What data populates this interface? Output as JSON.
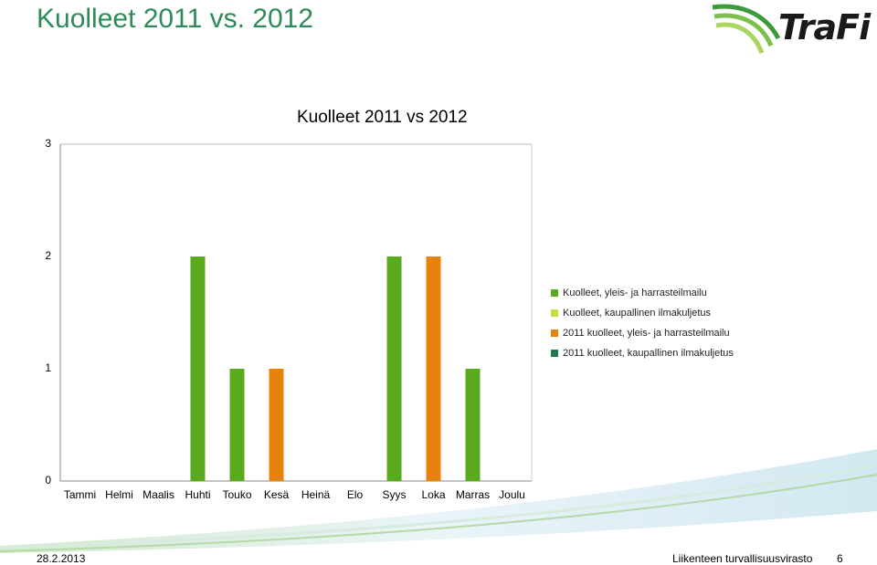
{
  "slide": {
    "title": "Kuolleet 2011 vs. 2012",
    "footer_date": "28.2.2013",
    "footer_org": "Liikenteen turvallisuusvirasto",
    "page_number": "6"
  },
  "logo": {
    "text": "TraFi"
  },
  "colors": {
    "title": "#2e8b57",
    "s1": "#5aaa1e",
    "s2": "#c5e03c",
    "s3": "#e8820c",
    "s4": "#1f7a4d"
  },
  "chart_data": {
    "type": "bar",
    "title": "Kuolleet 2011 vs 2012",
    "categories": [
      "Tammi",
      "Helmi",
      "Maalis",
      "Huhti",
      "Touko",
      "Kesä",
      "Heinä",
      "Elo",
      "Syys",
      "Loka",
      "Marras",
      "Joulu"
    ],
    "ylim": [
      0,
      3
    ],
    "yticks": [
      "0",
      "1",
      "2",
      "3"
    ],
    "grid": false,
    "legend_position": "right",
    "series": [
      {
        "name": "Kuolleet, yleis- ja harrasteilmailu",
        "color": "#5aaa1e",
        "values": [
          0,
          0,
          0,
          2,
          1,
          0,
          0,
          0,
          2,
          0,
          1,
          0
        ]
      },
      {
        "name": "Kuolleet, kaupallinen ilmakuljetus",
        "color": "#c5e03c",
        "values": [
          0,
          0,
          0,
          0,
          0,
          0,
          0,
          0,
          0,
          0,
          0,
          0
        ]
      },
      {
        "name": "2011 kuolleet, yleis- ja harrasteilmailu",
        "color": "#e8820c",
        "values": [
          0,
          0,
          0,
          0,
          0,
          1,
          0,
          0,
          0,
          2,
          0,
          0
        ]
      },
      {
        "name": "2011 kuolleet, kaupallinen ilmakuljetus",
        "color": "#1f7a4d",
        "values": [
          0,
          0,
          0,
          0,
          0,
          0,
          0,
          0,
          0,
          0,
          0,
          0
        ]
      }
    ]
  }
}
